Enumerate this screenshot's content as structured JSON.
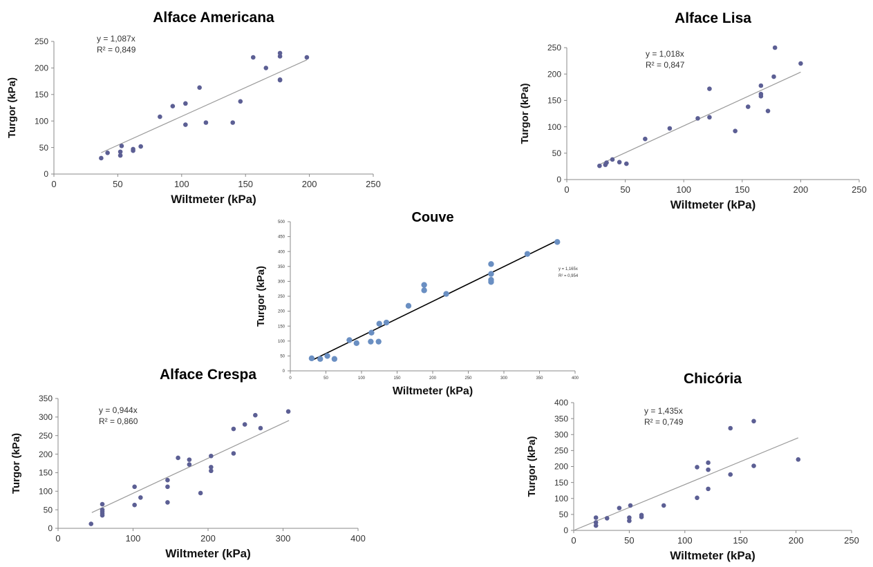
{
  "chart_data": [
    {
      "type": "scatter",
      "title": "Alface Americana",
      "xlabel": "Wiltmeter (kPa)",
      "ylabel": "Turgor (kPa)",
      "xlim": [
        0,
        250
      ],
      "ylim": [
        0,
        250
      ],
      "xticks": [
        0,
        50,
        100,
        150,
        200,
        250
      ],
      "yticks": [
        0,
        50,
        100,
        150,
        200,
        250
      ],
      "equation": "y = 1,087x",
      "r2": "R² = 0,849",
      "trend_slope": 1.087,
      "trend_x": [
        37,
        198
      ],
      "grid": false,
      "point_color": "#5c5f94",
      "line_color": "#9a9a9a",
      "points": [
        [
          37,
          30
        ],
        [
          42,
          40
        ],
        [
          52,
          35
        ],
        [
          52,
          42
        ],
        [
          53,
          53
        ],
        [
          62,
          44
        ],
        [
          62,
          47
        ],
        [
          68,
          52
        ],
        [
          83,
          108
        ],
        [
          93,
          128
        ],
        [
          103,
          93
        ],
        [
          103,
          133
        ],
        [
          114,
          163
        ],
        [
          119,
          97
        ],
        [
          140,
          97
        ],
        [
          146,
          137
        ],
        [
          156,
          220
        ],
        [
          166,
          200
        ],
        [
          177,
          177
        ],
        [
          177,
          178
        ],
        [
          177,
          222
        ],
        [
          177,
          228
        ],
        [
          198,
          220
        ]
      ]
    },
    {
      "type": "scatter",
      "title": "Alface Lisa",
      "xlabel": "Wiltmeter (kPa)",
      "ylabel": "Turgor (kPa)",
      "xlim": [
        0,
        250
      ],
      "ylim": [
        0,
        250
      ],
      "xticks": [
        0,
        50,
        100,
        150,
        200,
        250
      ],
      "yticks": [
        0,
        50,
        100,
        150,
        200,
        250
      ],
      "equation": "y = 1,018x",
      "r2": "R² = 0,847",
      "trend_slope": 1.018,
      "trend_x": [
        28,
        200
      ],
      "grid": false,
      "point_color": "#5c5f94",
      "line_color": "#9a9a9a",
      "points": [
        [
          28,
          26
        ],
        [
          33,
          28
        ],
        [
          34,
          32
        ],
        [
          39,
          38
        ],
        [
          45,
          33
        ],
        [
          51,
          30
        ],
        [
          67,
          77
        ],
        [
          88,
          97
        ],
        [
          112,
          116
        ],
        [
          122,
          118
        ],
        [
          122,
          172
        ],
        [
          144,
          92
        ],
        [
          155,
          138
        ],
        [
          166,
          158
        ],
        [
          166,
          162
        ],
        [
          166,
          178
        ],
        [
          172,
          130
        ],
        [
          177,
          195
        ],
        [
          178,
          250
        ],
        [
          200,
          220
        ]
      ]
    },
    {
      "type": "scatter",
      "title": "Couve",
      "xlabel": "Wiltmeter (kPa)",
      "ylabel": "Turgor (kPa)",
      "xlim": [
        0,
        400
      ],
      "ylim": [
        0,
        500
      ],
      "xticks": [
        0,
        50,
        100,
        150,
        200,
        250,
        300,
        350,
        400
      ],
      "yticks": [
        0,
        50,
        100,
        150,
        200,
        250,
        300,
        350,
        400,
        450,
        500
      ],
      "equation": "y = 1,165x",
      "r2": "R² = 0,954",
      "trend_slope": 1.165,
      "trend_x": [
        30,
        375
      ],
      "grid": false,
      "point_color": "#6a8fc2",
      "line_color": "#000000",
      "points": [
        [
          30,
          42
        ],
        [
          42,
          40
        ],
        [
          52,
          50
        ],
        [
          62,
          40
        ],
        [
          83,
          103
        ],
        [
          93,
          93
        ],
        [
          113,
          98
        ],
        [
          114,
          128
        ],
        [
          124,
          98
        ],
        [
          125,
          158
        ],
        [
          135,
          162
        ],
        [
          166,
          218
        ],
        [
          188,
          270
        ],
        [
          188,
          288
        ],
        [
          219,
          258
        ],
        [
          282,
          298
        ],
        [
          282,
          305
        ],
        [
          282,
          325
        ],
        [
          282,
          358
        ],
        [
          333,
          392
        ],
        [
          375,
          432
        ]
      ]
    },
    {
      "type": "scatter",
      "title": "Alface Crespa",
      "xlabel": "Wiltmeter (kPa)",
      "ylabel": "Turgor (kPa)",
      "xlim": [
        0,
        400
      ],
      "ylim": [
        0,
        350
      ],
      "xticks": [
        0,
        100,
        200,
        300,
        400
      ],
      "yticks": [
        0,
        50,
        100,
        150,
        200,
        250,
        300,
        350
      ],
      "equation": "y = 0,944x",
      "r2": "R² = 0,860",
      "trend_slope": 0.944,
      "trend_x": [
        45,
        308
      ],
      "grid": false,
      "point_color": "#5c5f94",
      "line_color": "#9a9a9a",
      "points": [
        [
          44,
          12
        ],
        [
          59,
          35
        ],
        [
          59,
          40
        ],
        [
          59,
          45
        ],
        [
          59,
          50
        ],
        [
          59,
          65
        ],
        [
          102,
          63
        ],
        [
          102,
          112
        ],
        [
          110,
          83
        ],
        [
          146,
          70
        ],
        [
          146,
          112
        ],
        [
          146,
          130
        ],
        [
          160,
          190
        ],
        [
          175,
          172
        ],
        [
          175,
          185
        ],
        [
          190,
          95
        ],
        [
          204,
          155
        ],
        [
          204,
          165
        ],
        [
          204,
          195
        ],
        [
          234,
          202
        ],
        [
          234,
          268
        ],
        [
          249,
          280
        ],
        [
          263,
          305
        ],
        [
          270,
          270
        ],
        [
          307,
          315
        ]
      ]
    },
    {
      "type": "scatter",
      "title": "Chicória",
      "xlabel": "Wiltmeter (kPa)",
      "ylabel": "Turgor (kPa)",
      "xlim": [
        0,
        250
      ],
      "ylim": [
        0,
        400
      ],
      "xticks": [
        0,
        50,
        100,
        150,
        200,
        250
      ],
      "yticks": [
        0,
        50,
        100,
        150,
        200,
        250,
        300,
        350,
        400
      ],
      "equation": "y = 1,435x",
      "r2": "R² = 0,749",
      "trend_slope": 1.435,
      "trend_x": [
        0,
        202
      ],
      "grid": false,
      "point_color": "#5c5f94",
      "line_color": "#9a9a9a",
      "points": [
        [
          20,
          15
        ],
        [
          20,
          25
        ],
        [
          20,
          40
        ],
        [
          30,
          38
        ],
        [
          41,
          70
        ],
        [
          50,
          30
        ],
        [
          50,
          40
        ],
        [
          51,
          78
        ],
        [
          61,
          42
        ],
        [
          61,
          48
        ],
        [
          81,
          78
        ],
        [
          111,
          102
        ],
        [
          111,
          198
        ],
        [
          121,
          130
        ],
        [
          121,
          190
        ],
        [
          121,
          212
        ],
        [
          141,
          175
        ],
        [
          141,
          320
        ],
        [
          162,
          202
        ],
        [
          162,
          342
        ],
        [
          202,
          222
        ]
      ]
    }
  ]
}
